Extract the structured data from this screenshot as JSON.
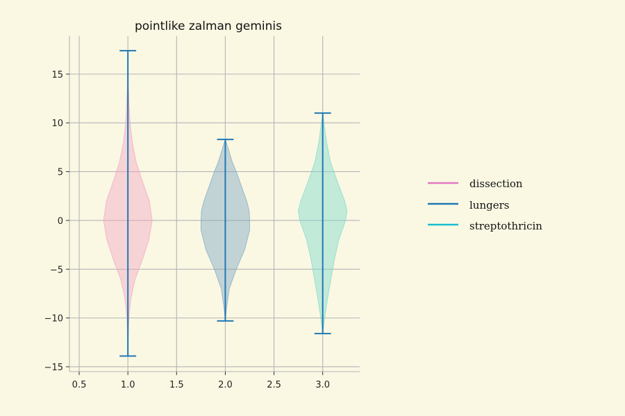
{
  "chart_data": {
    "type": "violin",
    "title": "pointlike zalman geminis",
    "xlabel": "",
    "ylabel": "",
    "xlim": [
      0.4,
      3.38
    ],
    "ylim": [
      -15.5,
      18.9
    ],
    "x_ticks": [
      0.5,
      1.0,
      1.5,
      2.0,
      2.5,
      3.0
    ],
    "x_tick_labels": [
      "0.5",
      "1.0",
      "1.5",
      "2.0",
      "2.5",
      "3.0"
    ],
    "y_ticks": [
      -15,
      -10,
      -5,
      0,
      5,
      10,
      15
    ],
    "y_tick_labels": [
      "−15",
      "−10",
      "−5",
      "0",
      "5",
      "10",
      "15"
    ],
    "grid": true,
    "legend_position": "right",
    "series": [
      {
        "name": "dissection",
        "x": 1.0,
        "min": -13.9,
        "max": 17.4,
        "fill_color": "#f2a7c3",
        "line_color": "#e377c2",
        "density": [
          [
            -13.9,
            0.0
          ],
          [
            -12.0,
            0.06
          ],
          [
            -10.0,
            0.2
          ],
          [
            -8.0,
            0.6
          ],
          [
            -6.0,
            1.5
          ],
          [
            -4.0,
            3.0
          ],
          [
            -2.0,
            4.3
          ],
          [
            0.0,
            5.0
          ],
          [
            2.0,
            4.4
          ],
          [
            4.0,
            3.0
          ],
          [
            6.0,
            1.7
          ],
          [
            8.0,
            0.9
          ],
          [
            10.0,
            0.45
          ],
          [
            12.0,
            0.22
          ],
          [
            14.0,
            0.09
          ],
          [
            17.4,
            0.0
          ]
        ]
      },
      {
        "name": "lungers",
        "x": 2.0,
        "min": -10.3,
        "max": 8.3,
        "fill_color": "#7fa7c4",
        "line_color": "#1f77b4",
        "density": [
          [
            -10.3,
            0.0
          ],
          [
            -9.0,
            0.25
          ],
          [
            -7.0,
            0.8
          ],
          [
            -5.0,
            2.2
          ],
          [
            -3.0,
            3.9
          ],
          [
            -1.0,
            4.9
          ],
          [
            0.0,
            4.9
          ],
          [
            1.0,
            4.8
          ],
          [
            2.0,
            4.3
          ],
          [
            3.0,
            3.6
          ],
          [
            4.0,
            2.9
          ],
          [
            5.0,
            2.2
          ],
          [
            6.0,
            1.4
          ],
          [
            7.0,
            0.8
          ],
          [
            8.3,
            0.0
          ]
        ]
      },
      {
        "name": "streptothricin",
        "x": 3.0,
        "min": -11.6,
        "max": 11.0,
        "fill_color": "#7fd9cc",
        "line_color": "#17becf",
        "density": [
          [
            -11.6,
            0.0
          ],
          [
            -10.0,
            0.4
          ],
          [
            -8.0,
            1.0
          ],
          [
            -6.0,
            1.7
          ],
          [
            -4.0,
            2.4
          ],
          [
            -2.0,
            3.3
          ],
          [
            0.0,
            4.7
          ],
          [
            1.0,
            5.0
          ],
          [
            2.0,
            4.5
          ],
          [
            4.0,
            3.0
          ],
          [
            6.0,
            1.6
          ],
          [
            8.0,
            0.8
          ],
          [
            10.0,
            0.25
          ],
          [
            11.0,
            0.0
          ]
        ]
      }
    ],
    "stat_line_color": "#1f77b4"
  },
  "legend": {
    "items": [
      {
        "label": "dissection",
        "color": "#e377c2"
      },
      {
        "label": "lungers",
        "color": "#1f77b4"
      },
      {
        "label": "streptothricin",
        "color": "#17becf"
      }
    ]
  }
}
